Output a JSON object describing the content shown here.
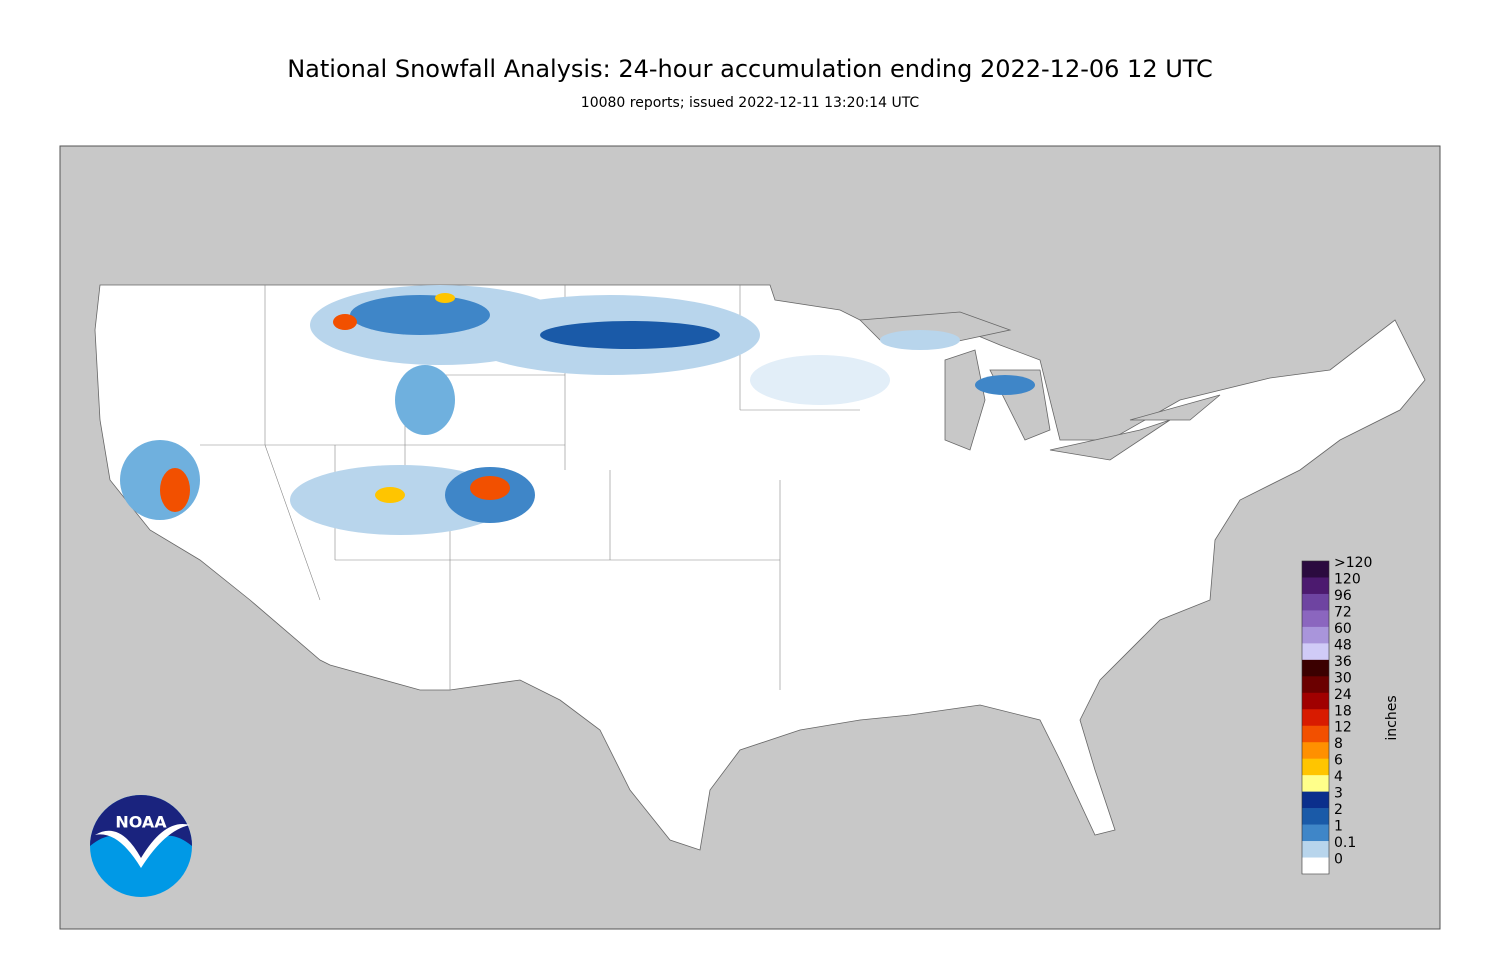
{
  "title": "National Snowfall Analysis: 24-hour accumulation ending 2022-12-06 12 UTC",
  "subtitle": "10080 reports; issued 2022-12-11 13:20:14 UTC",
  "logo": "NOAA",
  "legend": {
    "unit": "inches",
    "entries": [
      {
        "label": ">120",
        "color": "#2b0b3f"
      },
      {
        "label": "120",
        "color": "#4c1a6f"
      },
      {
        "label": "96",
        "color": "#6e44a1"
      },
      {
        "label": "72",
        "color": "#8b66bf"
      },
      {
        "label": "60",
        "color": "#a995db"
      },
      {
        "label": "48",
        "color": "#d0cbf7"
      },
      {
        "label": "36",
        "color": "#3b0000"
      },
      {
        "label": "30",
        "color": "#6b0000"
      },
      {
        "label": "24",
        "color": "#a00000"
      },
      {
        "label": "18",
        "color": "#d81b00"
      },
      {
        "label": "12",
        "color": "#f25000"
      },
      {
        "label": "8",
        "color": "#ff9000"
      },
      {
        "label": "6",
        "color": "#ffc500"
      },
      {
        "label": "4",
        "color": "#ffff8a"
      },
      {
        "label": "3",
        "color": "#0b2f8c"
      },
      {
        "label": "2",
        "color": "#1a5aa8"
      },
      {
        "label": "1",
        "color": "#3f86c8"
      },
      {
        "label": "0.1",
        "color": "#b8d5ec"
      },
      {
        "label": "0",
        "color": "#ffffff"
      }
    ]
  }
}
